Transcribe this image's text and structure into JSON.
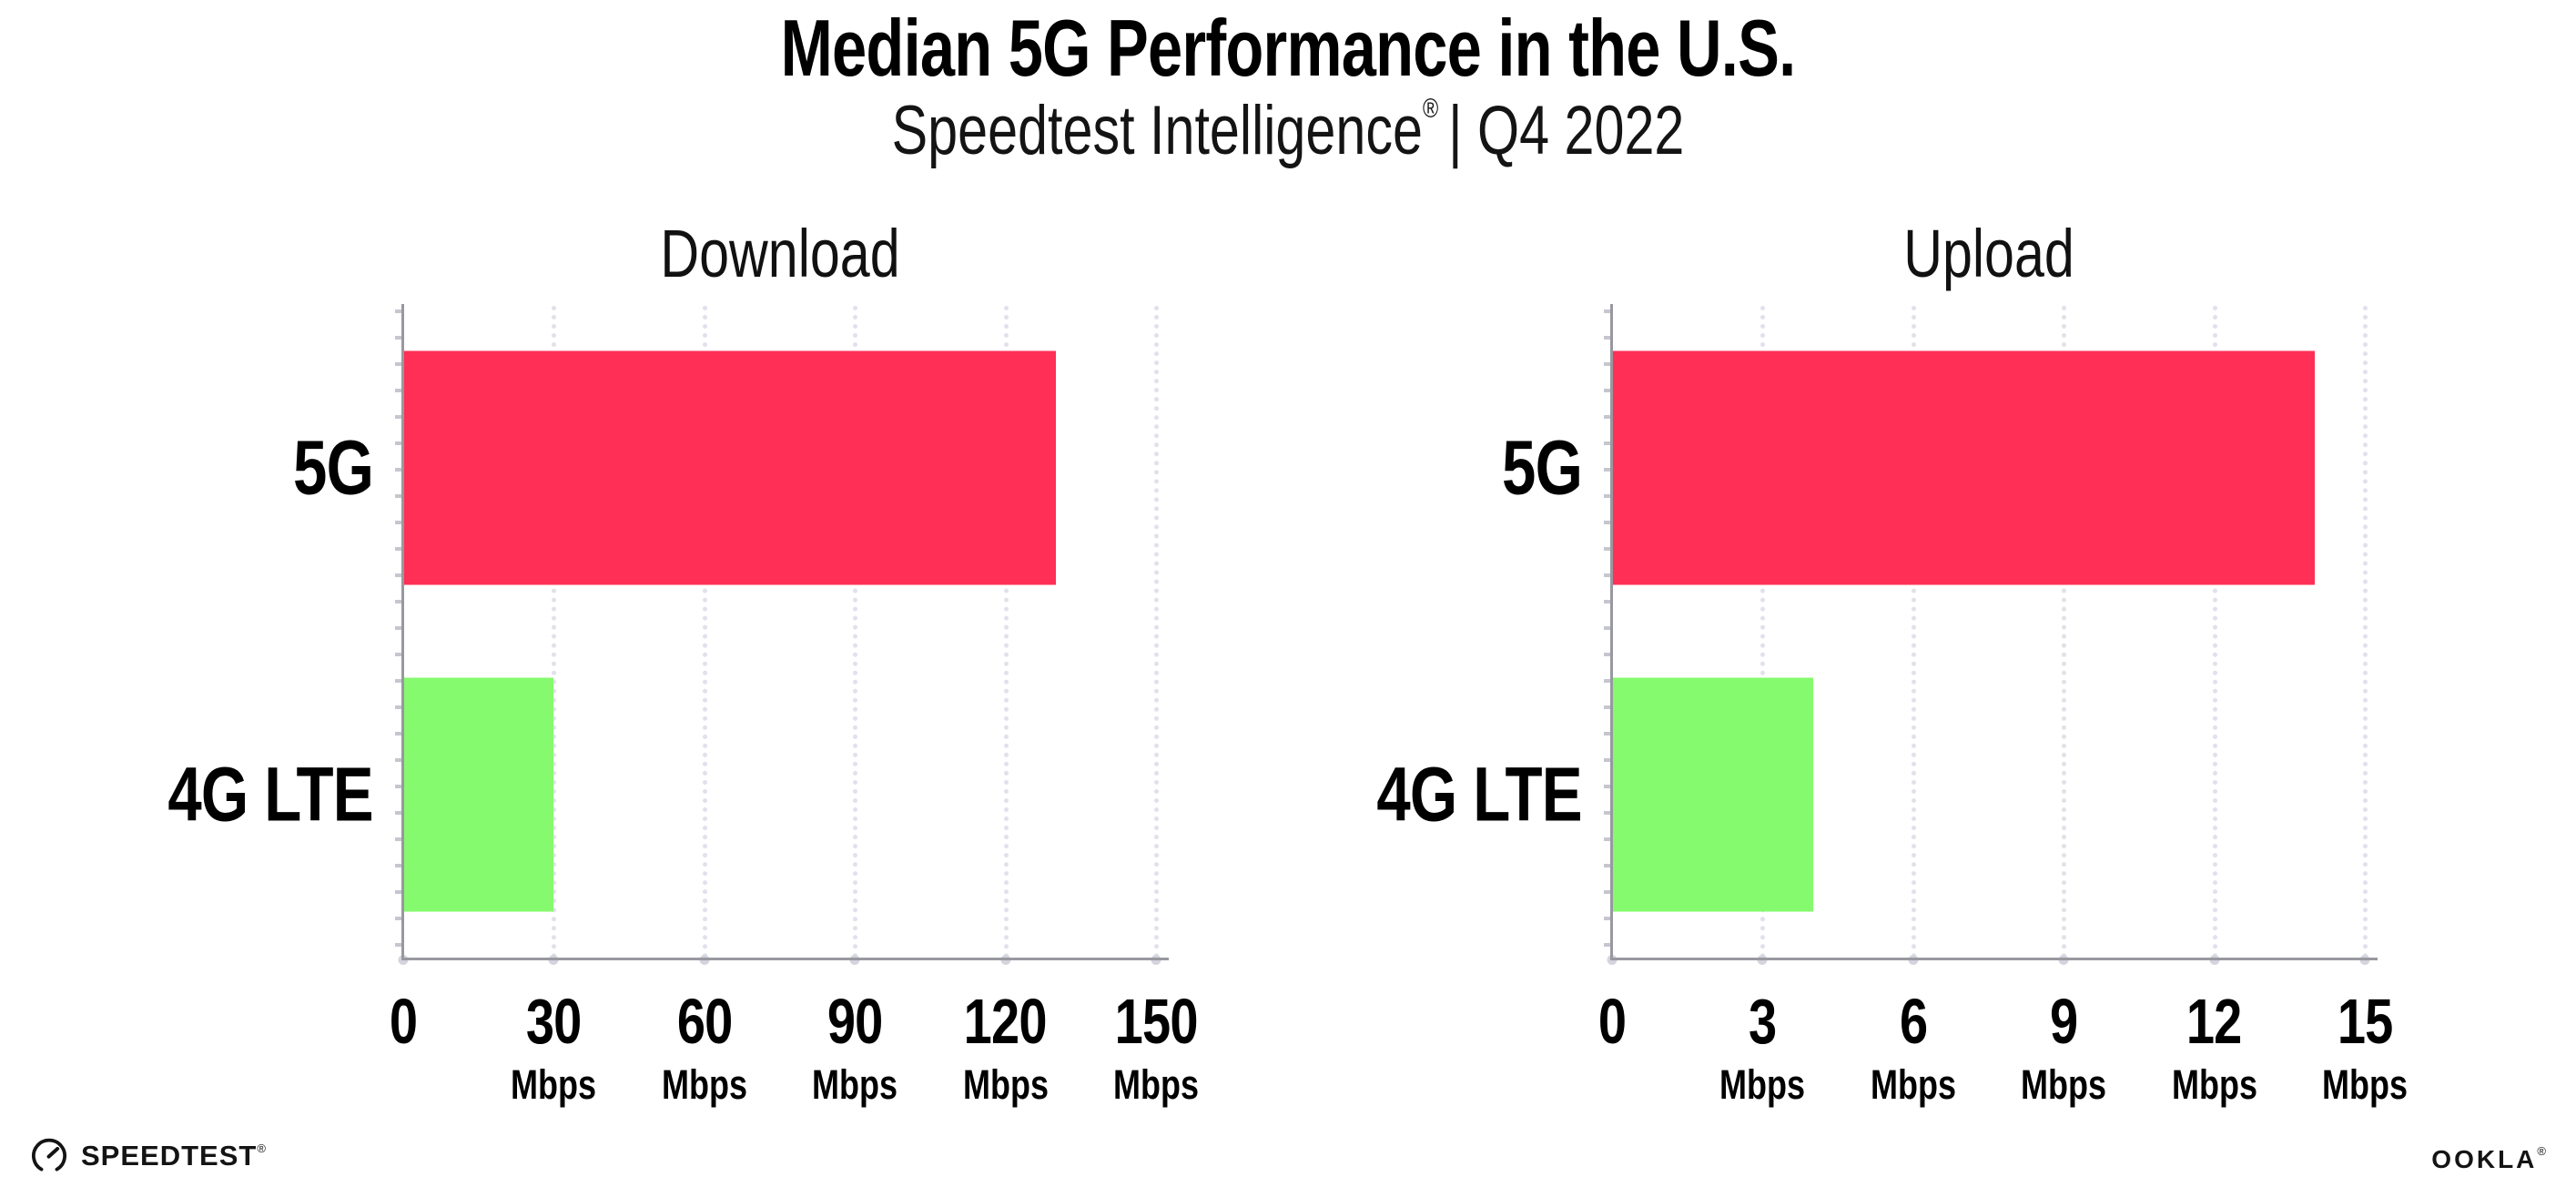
{
  "header": {
    "title": "Median 5G Performance in the U.S.",
    "subtitle_brand": "Speedtest Intelligence",
    "subtitle_registered": "®",
    "subtitle_rest": "| Q4 2022"
  },
  "colors": {
    "bar_5g": "#ff2f56",
    "bar_4g_lte": "#85fa6e",
    "axis": "#98989f",
    "gridline": "#e1e1eb",
    "text": "#000000"
  },
  "chart_data": [
    {
      "type": "bar",
      "orientation": "horizontal",
      "title": "Download",
      "categories": [
        "5G",
        "4G LTE"
      ],
      "values": [
        130,
        30
      ],
      "unit": "Mbps",
      "xlim": [
        0,
        150
      ],
      "xticks": [
        0,
        30,
        60,
        90,
        120,
        150
      ],
      "xtick_unit_label": "Mbps",
      "grid": "dotted vertical gridlines at each tick",
      "legend": "none",
      "bar_colors": [
        "#ff2f56",
        "#85fa6e"
      ]
    },
    {
      "type": "bar",
      "orientation": "horizontal",
      "title": "Upload",
      "categories": [
        "5G",
        "4G LTE"
      ],
      "values": [
        14,
        4
      ],
      "unit": "Mbps",
      "xlim": [
        0,
        15
      ],
      "xticks": [
        0,
        3,
        6,
        9,
        12,
        15
      ],
      "xtick_unit_label": "Mbps",
      "grid": "dotted vertical gridlines at each tick",
      "legend": "none",
      "bar_colors": [
        "#ff2f56",
        "#85fa6e"
      ]
    }
  ],
  "footer": {
    "speedtest_label": "SPEEDTEST",
    "speedtest_mark": "®",
    "ookla_label": "OOKLA",
    "ookla_mark": "®"
  }
}
